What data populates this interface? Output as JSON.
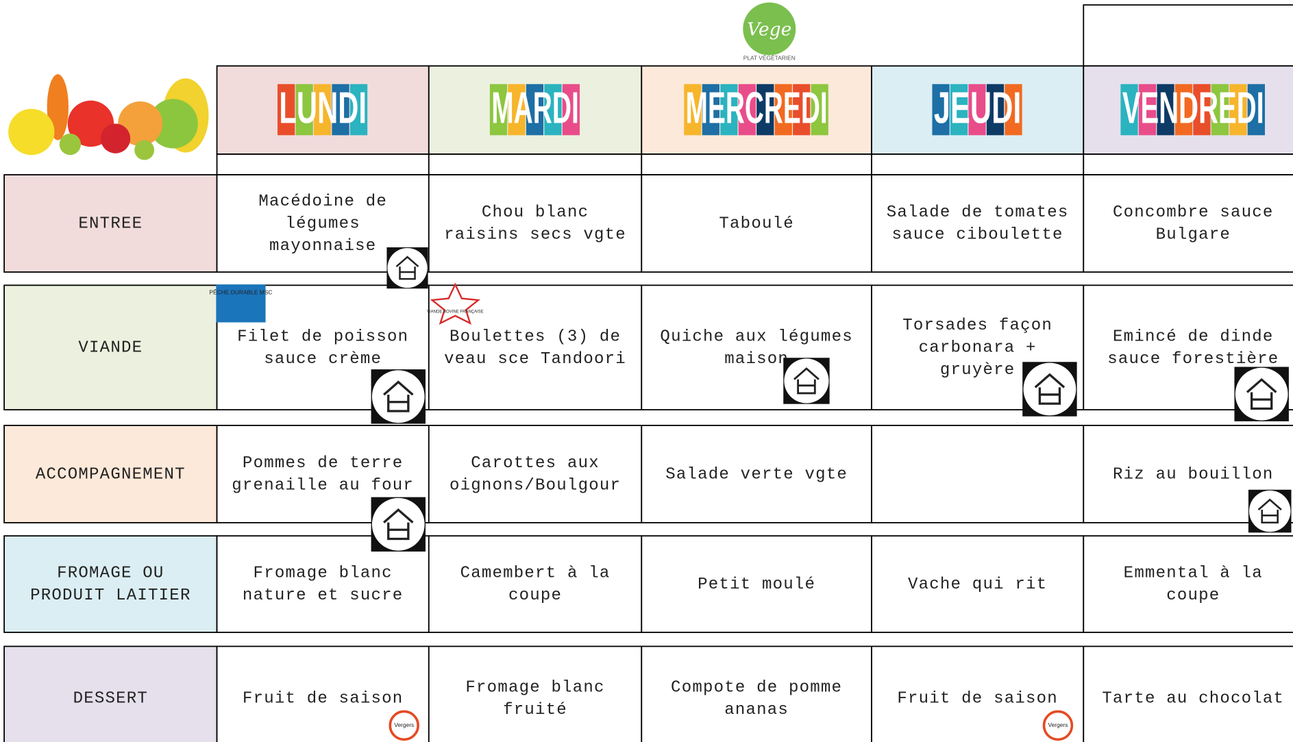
{
  "logo": {
    "title": "Vege",
    "caption": "PLAT VÉGÉTARIEN"
  },
  "days": [
    "LUNDI",
    "MARDI",
    "MERCREDI",
    "JEUDI",
    "VENDREDI"
  ],
  "vegetarian_day": 2,
  "vegetarian_color": "#3daa5c",
  "badges": {
    "msc": "PÊCHE DURABLE MSC",
    "vbf": "VIANDE BOVINE FRANÇAISE",
    "vergers": "Vergers"
  },
  "rows": [
    {
      "label": [
        "ENTREE"
      ],
      "cells": [
        [
          "Macédoine de",
          "légumes",
          "mayonnaise"
        ],
        [
          "Chou blanc",
          "raisins secs vgte"
        ],
        [
          "Taboulé"
        ],
        [
          "Salade de tomates",
          "sauce ciboulette"
        ],
        [
          "Concombre sauce",
          "Bulgare"
        ]
      ]
    },
    {
      "label": [
        "VIANDE"
      ],
      "cells": [
        [
          "Filet de poisson",
          "sauce crème"
        ],
        [
          "Boulettes (3) de",
          "veau sce Tandoori"
        ],
        [
          "Quiche aux légumes",
          "maison"
        ],
        [
          "Torsades façon",
          "carbonara +",
          "gruyère"
        ],
        [
          "Emincé de dinde",
          "sauce forestière"
        ]
      ]
    },
    {
      "label": [
        "ACCOMPAGNEMENT"
      ],
      "cells": [
        [
          "Pommes de terre",
          "grenaille au four"
        ],
        [
          "Carottes aux",
          "oignons/Boulgour"
        ],
        [
          "Salade verte vgte"
        ],
        [],
        [
          "Riz au bouillon"
        ]
      ]
    },
    {
      "label": [
        "FROMAGE OU",
        "PRODUIT LAITIER"
      ],
      "cells": [
        [
          "Fromage blanc",
          "nature et sucre"
        ],
        [
          "Camembert à la",
          "coupe"
        ],
        [
          "Petit moulé"
        ],
        [
          "Vache qui rit"
        ],
        [
          "Emmental à la",
          "coupe"
        ]
      ]
    },
    {
      "label": [
        "DESSERT"
      ],
      "cells": [
        [
          "Fruit de saison"
        ],
        [
          "Fromage blanc",
          "fruité"
        ],
        [
          "Compote de pomme",
          "ananas"
        ],
        [
          "Fruit de saison"
        ],
        [
          "Tarte au chocolat"
        ]
      ]
    }
  ]
}
